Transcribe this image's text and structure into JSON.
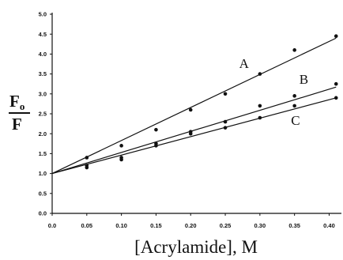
{
  "chart_data": {
    "type": "scatter",
    "title": "",
    "xlabel": "[Acrylamide], M",
    "ylabel_numerator": "F",
    "ylabel_numerator_sub": "o",
    "ylabel_denominator": "F",
    "xlim": [
      0.0,
      0.42
    ],
    "ylim": [
      0.0,
      5.0
    ],
    "xticks": [
      "0.0",
      "0.05",
      "0.10",
      "0.15",
      "0.20",
      "0.25",
      "0.30",
      "0.35",
      "0.40"
    ],
    "xtick_values": [
      0.0,
      0.05,
      0.1,
      0.15,
      0.2,
      0.25,
      0.3,
      0.35,
      0.4
    ],
    "yticks": [
      "0.0",
      "0.5",
      "1.0",
      "1.5",
      "2.0",
      "2.5",
      "3.0",
      "3.5",
      "4.0",
      "4.5",
      "5.0"
    ],
    "ytick_values": [
      0.0,
      0.5,
      1.0,
      1.5,
      2.0,
      2.5,
      3.0,
      3.5,
      4.0,
      4.5,
      5.0
    ],
    "grid": false,
    "legend": "none",
    "series": [
      {
        "name": "A",
        "x": [
          0.05,
          0.1,
          0.15,
          0.2,
          0.25,
          0.3,
          0.35,
          0.41
        ],
        "y": [
          1.4,
          1.7,
          2.1,
          2.6,
          3.0,
          3.5,
          4.1,
          4.45
        ],
        "fit": {
          "x": [
            0.0,
            0.41
          ],
          "y": [
            1.0,
            4.4
          ]
        },
        "label_at": {
          "x": 0.27,
          "y": 3.65
        }
      },
      {
        "name": "B",
        "x": [
          0.05,
          0.1,
          0.15,
          0.2,
          0.25,
          0.3,
          0.35,
          0.41
        ],
        "y": [
          1.2,
          1.4,
          1.75,
          2.05,
          2.3,
          2.7,
          2.95,
          3.25
        ],
        "fit": {
          "x": [
            0.0,
            0.41
          ],
          "y": [
            1.0,
            3.17
          ]
        },
        "label_at": {
          "x": 0.357,
          "y": 3.25
        }
      },
      {
        "name": "C",
        "x": [
          0.05,
          0.1,
          0.15,
          0.2,
          0.25,
          0.3,
          0.35,
          0.41
        ],
        "y": [
          1.15,
          1.35,
          1.7,
          2.0,
          2.15,
          2.4,
          2.7,
          2.9
        ],
        "fit": {
          "x": [
            0.0,
            0.41
          ],
          "y": [
            1.0,
            2.9
          ]
        },
        "label_at": {
          "x": 0.345,
          "y": 2.22
        }
      }
    ]
  }
}
